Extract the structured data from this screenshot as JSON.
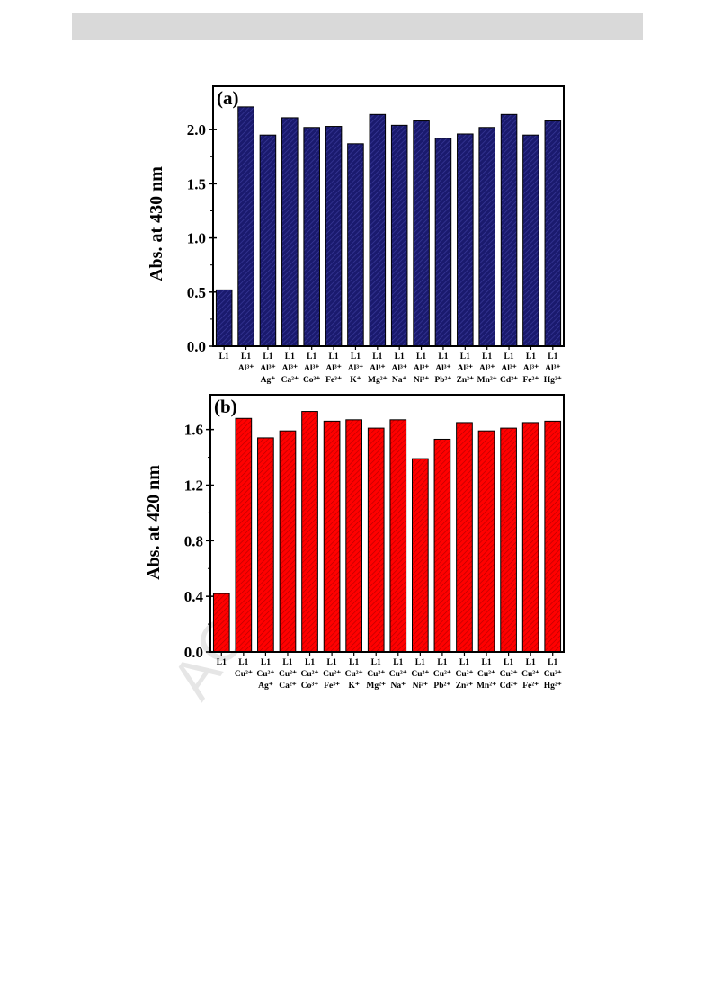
{
  "page": {
    "watermark": "AC"
  },
  "chart_data": [
    {
      "type": "bar",
      "panel_label": "(a)",
      "ylabel": "Abs. at 430 nm",
      "ylim": [
        0,
        2.4
      ],
      "yticks": [
        "0.0",
        "0.5",
        "1.0",
        "1.5",
        "2.0"
      ],
      "ytick_values": [
        0,
        0.5,
        1.0,
        1.5,
        2.0
      ],
      "bar_color": "#1a1a6e",
      "hatch": true,
      "categories": [
        [
          "L1"
        ],
        [
          "L1",
          "Al³⁺"
        ],
        [
          "L1",
          "Al³⁺",
          "Ag⁺"
        ],
        [
          "L1",
          "Al³⁺",
          "Ca²⁺"
        ],
        [
          "L1",
          "Al³⁺",
          "Co³⁺"
        ],
        [
          "L1",
          "Al³⁺",
          "Fe³⁺"
        ],
        [
          "L1",
          "Al³⁺",
          "K⁺"
        ],
        [
          "L1",
          "Al³⁺",
          "Mg²⁺"
        ],
        [
          "L1",
          "Al³⁺",
          "Na⁺"
        ],
        [
          "L1",
          "Al³⁺",
          "Ni²⁺"
        ],
        [
          "L1",
          "Al³⁺",
          "Pb²⁺"
        ],
        [
          "L1",
          "Al³⁺",
          "Zn²⁺"
        ],
        [
          "L1",
          "Al³⁺",
          "Mn²⁺"
        ],
        [
          "L1",
          "Al³⁺",
          "Cd²⁺"
        ],
        [
          "L1",
          "Al³⁺",
          "Fe²⁺"
        ],
        [
          "L1",
          "Al³⁺",
          "Hg²⁺"
        ]
      ],
      "values": [
        0.52,
        2.21,
        1.95,
        2.11,
        2.02,
        2.03,
        1.87,
        2.14,
        2.04,
        2.08,
        1.92,
        1.96,
        2.02,
        2.14,
        1.95,
        2.08
      ]
    },
    {
      "type": "bar",
      "panel_label": "(b)",
      "ylabel": "Abs. at 420 nm",
      "ylim": [
        0,
        1.85
      ],
      "yticks": [
        "0.0",
        "0.4",
        "0.8",
        "1.2",
        "1.6"
      ],
      "ytick_values": [
        0,
        0.4,
        0.8,
        1.2,
        1.6
      ],
      "bar_color": "#ff0000",
      "hatch": true,
      "categories": [
        [
          "L1"
        ],
        [
          "L1",
          "Cu²⁺"
        ],
        [
          "L1",
          "Cu²⁺",
          "Ag⁺"
        ],
        [
          "L1",
          "Cu²⁺",
          "Ca²⁺"
        ],
        [
          "L1",
          "Cu²⁺",
          "Co³⁺"
        ],
        [
          "L1",
          "Cu²⁺",
          "Fe³⁺"
        ],
        [
          "L1",
          "Cu²⁺",
          "K⁺"
        ],
        [
          "L1",
          "Cu²⁺",
          "Mg²⁺"
        ],
        [
          "L1",
          "Cu²⁺",
          "Na⁺"
        ],
        [
          "L1",
          "Cu²⁺",
          "Ni²⁺"
        ],
        [
          "L1",
          "Cu²⁺",
          "Pb²⁺"
        ],
        [
          "L1",
          "Cu²⁺",
          "Zn²⁺"
        ],
        [
          "L1",
          "Cu²⁺",
          "Mn²⁺"
        ],
        [
          "L1",
          "Cu²⁺",
          "Cd²⁺"
        ],
        [
          "L1",
          "Cu²⁺",
          "Fe²⁺"
        ],
        [
          "L1",
          "Cu²⁺",
          "Hg²⁺"
        ]
      ],
      "values": [
        0.42,
        1.68,
        1.54,
        1.59,
        1.73,
        1.66,
        1.67,
        1.61,
        1.67,
        1.39,
        1.53,
        1.65,
        1.59,
        1.61,
        1.65,
        1.66
      ]
    }
  ]
}
